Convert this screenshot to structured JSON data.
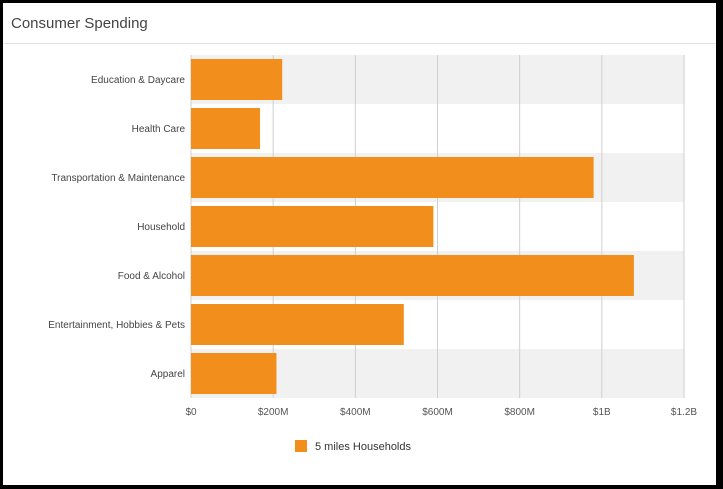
{
  "panel": {
    "title": "Consumer Spending"
  },
  "chart_data": {
    "type": "bar",
    "orientation": "horizontal",
    "categories": [
      "Education & Daycare",
      "Health Care",
      "Transportation & Maintenance",
      "Household",
      "Food & Alcohol",
      "Entertainment, Hobbies & Pets",
      "Apparel"
    ],
    "series": [
      {
        "name": "5 miles Households",
        "color": "#f28e1c",
        "values": [
          222000000,
          168000000,
          980000000,
          590000000,
          1078000000,
          518000000,
          208000000
        ]
      }
    ],
    "xlim": [
      0,
      1200000000
    ],
    "ticks": [
      {
        "value": 0,
        "label": "$0"
      },
      {
        "value": 200000000,
        "label": "$200M"
      },
      {
        "value": 400000000,
        "label": "$400M"
      },
      {
        "value": 600000000,
        "label": "$600M"
      },
      {
        "value": 800000000,
        "label": "$800M"
      },
      {
        "value": 1000000000,
        "label": "$1B"
      },
      {
        "value": 1200000000,
        "label": "$1.2B"
      }
    ],
    "grid": true,
    "legend": "bottom-center",
    "band_color": "#f1f1f1"
  }
}
